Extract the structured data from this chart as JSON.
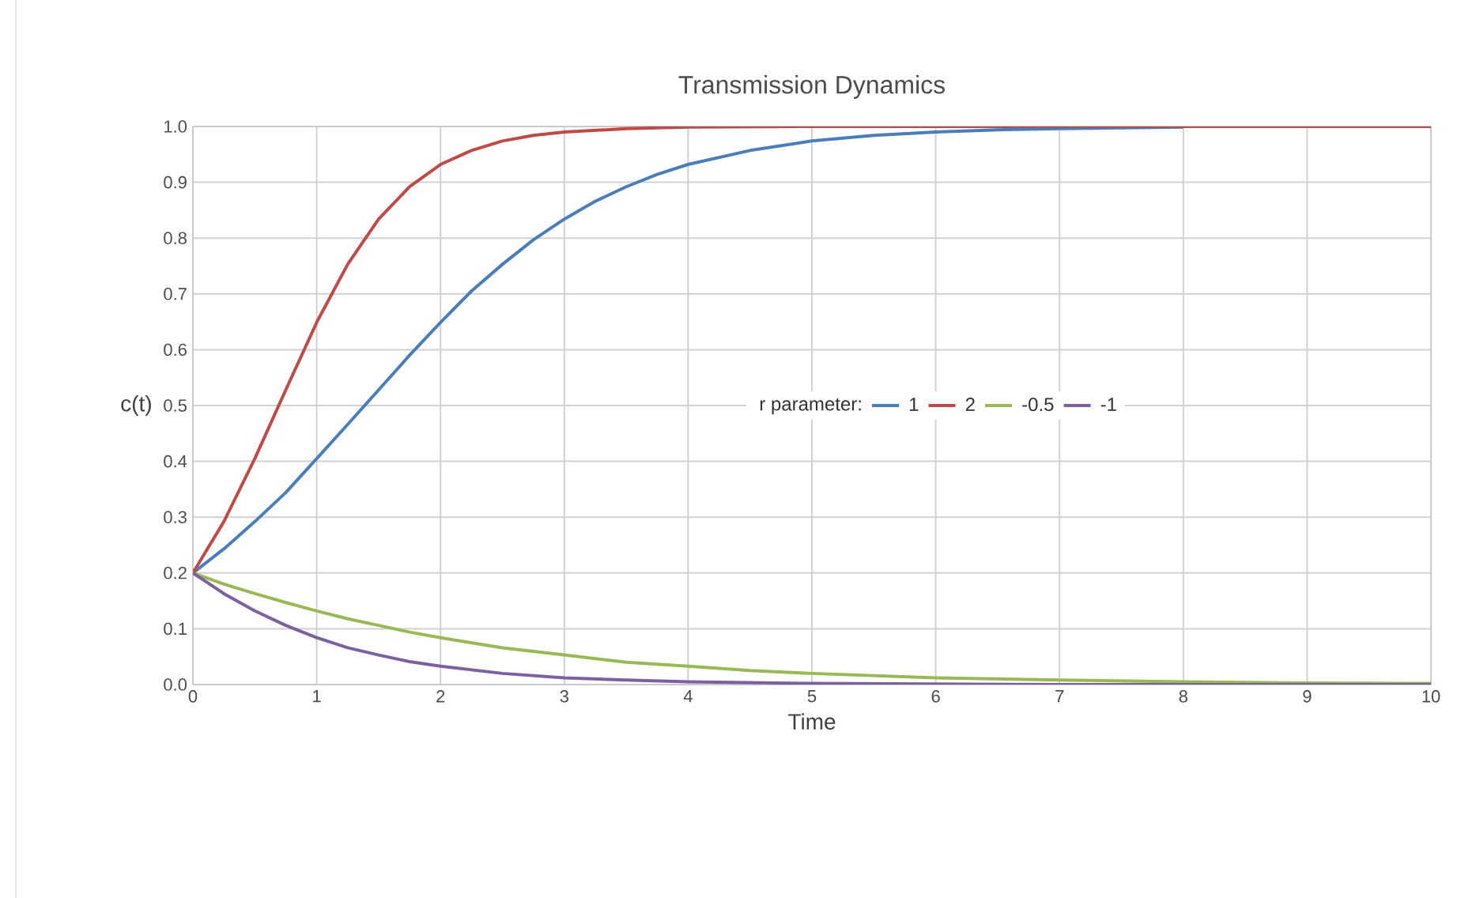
{
  "chart_data": {
    "type": "line",
    "title": "Transmission Dynamics",
    "xlabel": "Time",
    "ylabel": "c(t)",
    "legend_title": "r parameter:",
    "legend": "center",
    "grid": true,
    "marker": "none",
    "line_style": "solid",
    "xlim": [
      0,
      10
    ],
    "xticks": [
      0,
      1,
      2,
      3,
      4,
      5,
      6,
      7,
      8,
      9,
      10
    ],
    "ylim": [
      0,
      1
    ],
    "yticks": [
      {
        "value": 0,
        "label": "0.0"
      },
      {
        "value": 0.1,
        "label": "0.1"
      },
      {
        "value": 0.2,
        "label": "0.2"
      },
      {
        "value": 0.3,
        "label": "0.3"
      },
      {
        "value": 0.4,
        "label": "0.4"
      },
      {
        "value": 0.5,
        "label": "0.5"
      },
      {
        "value": 0.6,
        "label": "0.6"
      },
      {
        "value": 0.7,
        "label": "0.7"
      },
      {
        "value": 0.8,
        "label": "0.8"
      },
      {
        "value": 0.9,
        "label": "0.9"
      },
      {
        "value": 1,
        "label": "1.0"
      }
    ],
    "series": [
      {
        "name": "1",
        "color": "#4a7ebb",
        "x": [
          0,
          0.25,
          0.5,
          0.75,
          1,
          1.25,
          1.5,
          1.75,
          2,
          2.25,
          2.5,
          2.75,
          3,
          3.25,
          3.5,
          3.75,
          4,
          4.5,
          5,
          5.5,
          6,
          6.5,
          7,
          8
        ],
        "values": [
          0.2,
          0.243,
          0.292,
          0.344,
          0.405,
          0.466,
          0.528,
          0.59,
          0.649,
          0.705,
          0.753,
          0.797,
          0.834,
          0.866,
          0.892,
          0.914,
          0.932,
          0.957,
          0.974,
          0.984,
          0.99,
          0.994,
          0.996,
          0.999
        ]
      },
      {
        "name": "2",
        "color": "#be4b48",
        "x": [
          0,
          0.25,
          0.5,
          0.75,
          1,
          1.25,
          1.5,
          1.75,
          2,
          2.25,
          2.5,
          2.75,
          3,
          3.5,
          4,
          5,
          10
        ],
        "values": [
          0.2,
          0.292,
          0.405,
          0.528,
          0.649,
          0.753,
          0.834,
          0.892,
          0.932,
          0.957,
          0.974,
          0.984,
          0.99,
          0.996,
          0.999,
          1,
          1
        ]
      },
      {
        "name": "-0.5",
        "color": "#98b954",
        "x": [
          0,
          0.25,
          0.5,
          0.75,
          1,
          1.25,
          1.5,
          1.75,
          2,
          2.5,
          3,
          3.5,
          4,
          4.5,
          5,
          6,
          7,
          8,
          9,
          10
        ],
        "values": [
          0.2,
          0.18,
          0.163,
          0.147,
          0.132,
          0.118,
          0.106,
          0.094,
          0.084,
          0.066,
          0.053,
          0.04,
          0.033,
          0.025,
          0.02,
          0.012,
          0.008,
          0.005,
          0.003,
          0.002
        ]
      },
      {
        "name": "-1",
        "color": "#7d60a0",
        "x": [
          0,
          0.25,
          0.5,
          0.75,
          1,
          1.25,
          1.5,
          1.75,
          2,
          2.5,
          3,
          3.5,
          4,
          5,
          6,
          7,
          10
        ],
        "values": [
          0.2,
          0.163,
          0.132,
          0.106,
          0.084,
          0.066,
          0.053,
          0.041,
          0.033,
          0.02,
          0.012,
          0.008,
          0.005,
          0.002,
          0.001,
          0,
          0
        ]
      }
    ]
  }
}
